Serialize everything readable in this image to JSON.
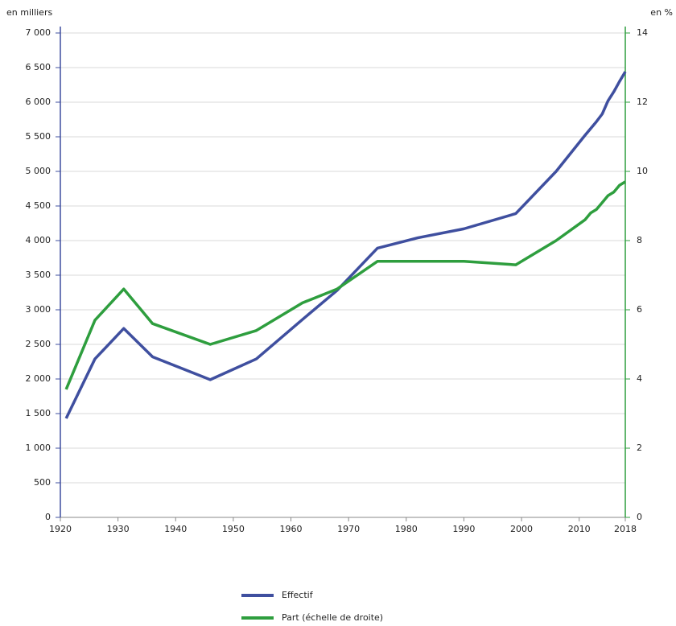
{
  "chart_data": {
    "type": "line",
    "y_label": "en milliers",
    "y2_label": "en %",
    "xlim": [
      1920,
      2018
    ],
    "xticks": [
      1920,
      1930,
      1940,
      1950,
      1960,
      1970,
      1980,
      1990,
      2000,
      2010,
      2018
    ],
    "ylim": [
      0,
      7000
    ],
    "yticks": [
      0,
      500,
      {
        "value": 1000,
        "label": "1 000"
      },
      {
        "value": 1500,
        "label": "1 500"
      },
      {
        "value": 2000,
        "label": "2 000"
      },
      {
        "value": 2500,
        "label": "2 500"
      },
      {
        "value": 3000,
        "label": "3 000"
      },
      {
        "value": 3500,
        "label": "3 500"
      },
      {
        "value": 4000,
        "label": "4 000"
      },
      {
        "value": 4500,
        "label": "4 500"
      },
      {
        "value": 5000,
        "label": "5 000"
      },
      {
        "value": 5500,
        "label": "5 500"
      },
      {
        "value": 6000,
        "label": "6 000"
      },
      {
        "value": 6500,
        "label": "6 500"
      },
      {
        "value": 7000,
        "label": "7 000"
      }
    ],
    "y2lim": [
      0,
      14
    ],
    "y2ticks": [
      0,
      2,
      4,
      6,
      8,
      10,
      12,
      14
    ],
    "grid": true,
    "series": [
      {
        "name": "Effectif",
        "color": "#3f4f9f",
        "x": [
          1921,
          1926,
          1931,
          1936,
          1946,
          1954,
          1962,
          1968,
          1975,
          1982,
          1990,
          1999,
          2006,
          2011,
          2013,
          2014,
          2015,
          2016,
          2017,
          2018
        ],
        "values": [
          1430,
          2290,
          2730,
          2320,
          1990,
          2290,
          2860,
          3280,
          3890,
          4040,
          4170,
          4390,
          5000,
          5520,
          5720,
          5830,
          6020,
          6150,
          6300,
          6440
        ]
      },
      {
        "name": "Part (échelle de droite)",
        "color": "#2e9e3e",
        "axis": "y2",
        "x": [
          1921,
          1926,
          1931,
          1936,
          1946,
          1954,
          1962,
          1968,
          1975,
          1982,
          1990,
          1999,
          2006,
          2011,
          2012,
          2013,
          2014,
          2015,
          2016,
          2017,
          2018
        ],
        "values": [
          3.7,
          5.7,
          6.6,
          5.6,
          5.0,
          5.4,
          6.2,
          6.6,
          7.4,
          7.4,
          7.4,
          7.3,
          8.0,
          8.6,
          8.8,
          8.9,
          9.1,
          9.3,
          9.4,
          9.6,
          9.7
        ]
      }
    ]
  }
}
